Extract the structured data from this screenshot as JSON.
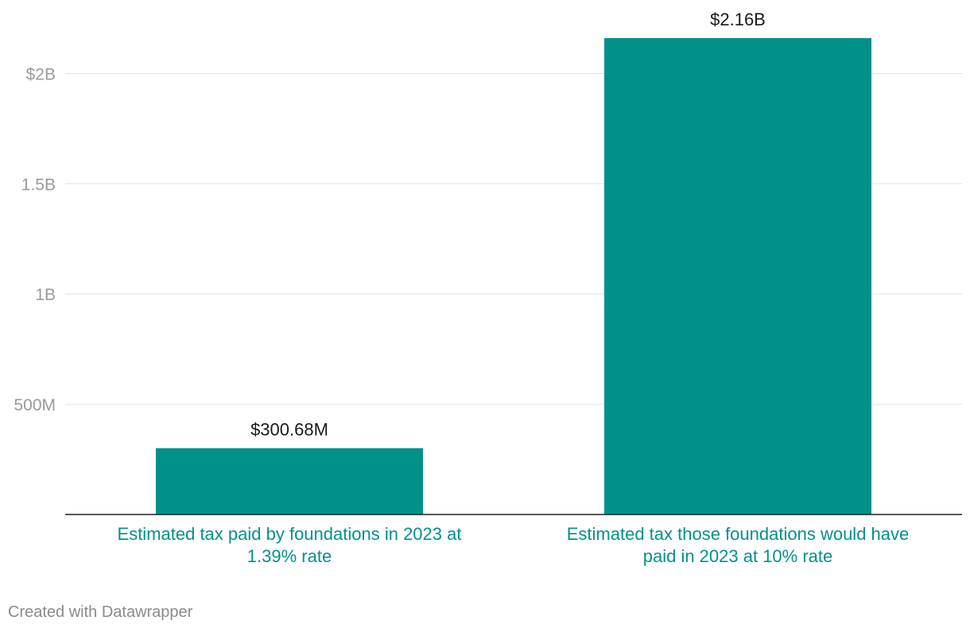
{
  "colors": {
    "bar": "#00918b",
    "category_text": "#00918b"
  },
  "chart_data": {
    "type": "bar",
    "title": "",
    "xlabel": "",
    "ylabel": "",
    "ylim": [
      0,
      2160000000
    ],
    "grid": true,
    "y_ticks": [
      {
        "value": 500000000,
        "label": "500M"
      },
      {
        "value": 1000000000,
        "label": "1B"
      },
      {
        "value": 1500000000,
        "label": "1.5B"
      },
      {
        "value": 2000000000,
        "label": "$2B"
      }
    ],
    "categories": [
      [
        "Estimated tax paid by foundations in 2023 at",
        "1.39% rate"
      ],
      [
        "Estimated tax those foundations would have",
        "paid in 2023 at 10% rate"
      ]
    ],
    "values": [
      300680000,
      2160000000
    ],
    "data_labels": [
      "$300.68M",
      "$2.16B"
    ]
  },
  "footer": {
    "credit": "Created with Datawrapper"
  }
}
